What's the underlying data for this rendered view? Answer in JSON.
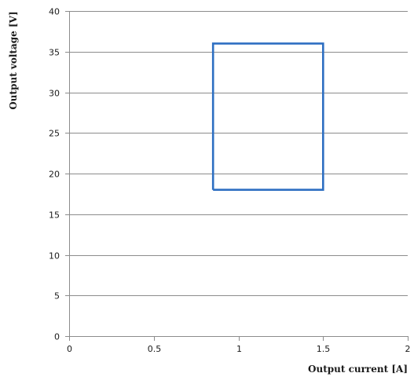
{
  "chart_data": {
    "type": "line",
    "title": "",
    "xlabel": "Output current  [A]",
    "ylabel": "Output voltage [V]",
    "xlim": [
      0,
      2
    ],
    "ylim": [
      0,
      40
    ],
    "x_ticks": [
      0,
      0.5,
      1,
      1.5,
      2
    ],
    "x_tick_labels": [
      "0",
      "0.5",
      "1",
      "1.5",
      "2"
    ],
    "y_ticks": [
      0,
      5,
      10,
      15,
      20,
      25,
      30,
      35,
      40
    ],
    "y_tick_labels": [
      "0",
      "5",
      "10",
      "15",
      "20",
      "25",
      "30",
      "35",
      "40"
    ],
    "grid": "horizontal",
    "legend": "none",
    "series": [
      {
        "x": [
          0.85,
          1.5,
          1.5,
          0.85,
          0.85
        ],
        "y": [
          18,
          18,
          36,
          36,
          18
        ],
        "color": "#2e6fc2"
      }
    ]
  },
  "colors": {
    "grid": "#8c8c8c",
    "axis": "#8c8c8c",
    "series": "#2e6fc2"
  }
}
